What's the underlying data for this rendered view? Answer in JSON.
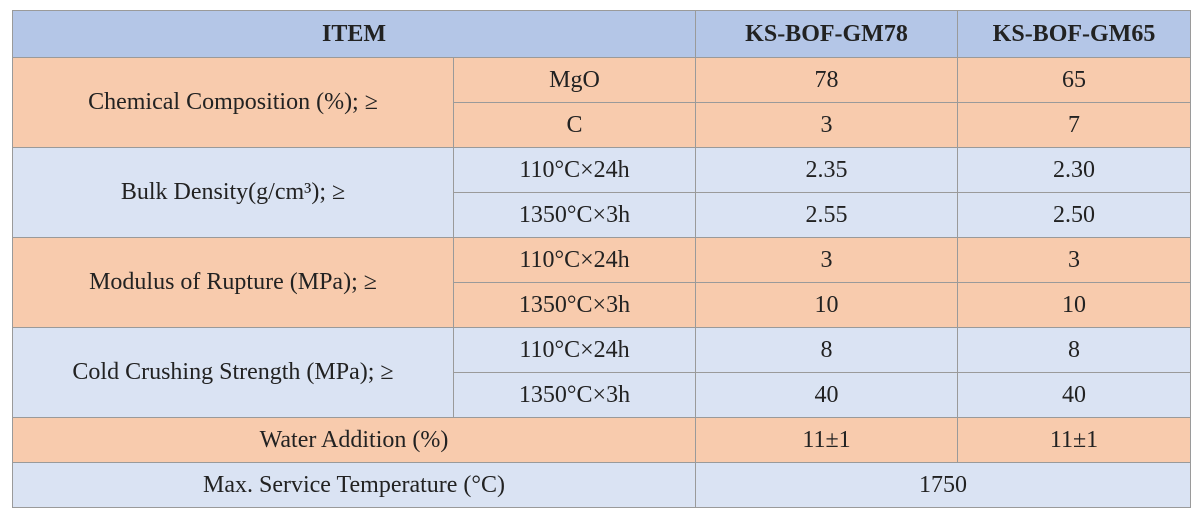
{
  "table": {
    "header": [
      "ITEM",
      "KS-BOF-GM78",
      "KS-BOF-GM65"
    ],
    "groups": [
      {
        "label": "Chemical Composition (%); ≥",
        "rows": [
          [
            "MgO",
            "78",
            "65"
          ],
          [
            "C",
            "3",
            "7"
          ]
        ]
      },
      {
        "label": "Bulk Density(g/cm³); ≥",
        "rows": [
          [
            "110°C×24h",
            "2.35",
            "2.30"
          ],
          [
            "1350°C×3h",
            "2.55",
            "2.50"
          ]
        ]
      },
      {
        "label": "Modulus of Rupture (MPa); ≥",
        "rows": [
          [
            "110°C×24h",
            "3",
            "3"
          ],
          [
            "1350°C×3h",
            "10",
            "10"
          ]
        ]
      },
      {
        "label": "Cold Crushing Strength (MPa); ≥",
        "rows": [
          [
            "110°C×24h",
            "8",
            "8"
          ],
          [
            "1350°C×3h",
            "40",
            "40"
          ]
        ]
      }
    ],
    "water": {
      "label": "Water Addition (%)",
      "values": [
        "11±1",
        "11±1"
      ]
    },
    "max_temp": {
      "label": "Max. Service Temperature (°C)",
      "value": "1750"
    }
  }
}
